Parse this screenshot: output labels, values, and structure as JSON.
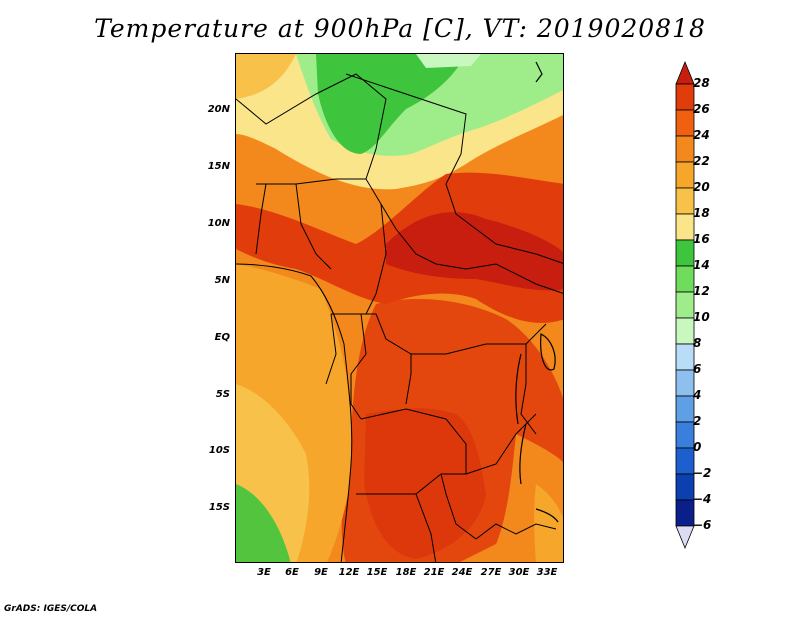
{
  "title": "Temperature at 900hPa [C], VT: 2019020818",
  "footer": "GrADS: IGES/COLA",
  "map": {
    "variable": "Temperature",
    "level": "900hPa",
    "units": "C",
    "valid_time": "2019020818",
    "lat_labels": [
      "20N",
      "15N",
      "10N",
      "5N",
      "EQ",
      "5S",
      "10S",
      "15S"
    ],
    "lon_labels": [
      "3E",
      "6E",
      "9E",
      "12E",
      "15E",
      "18E",
      "21E",
      "24E",
      "27E",
      "30E",
      "33E"
    ]
  },
  "colorbar": {
    "levels": [
      28,
      26,
      24,
      22,
      20,
      18,
      16,
      14,
      12,
      10,
      8,
      6,
      4,
      2,
      0,
      -2,
      -4,
      -6
    ],
    "colors": [
      "#a50f15",
      "#e13c0c",
      "#f06010",
      "#f3881c",
      "#f6a62a",
      "#f8c24a",
      "#fae58a",
      "#3fc43d",
      "#6fdc5c",
      "#9eed8a",
      "#c8f7c0",
      "#b9ddf7",
      "#8dc0ef",
      "#5f9fe5",
      "#3a7fdc",
      "#1e5fd0",
      "#0c3fb0",
      "#0a1f8a",
      "#10106a"
    ],
    "top_color": "#c81e10",
    "bottom_color": "#dcdcf4"
  }
}
